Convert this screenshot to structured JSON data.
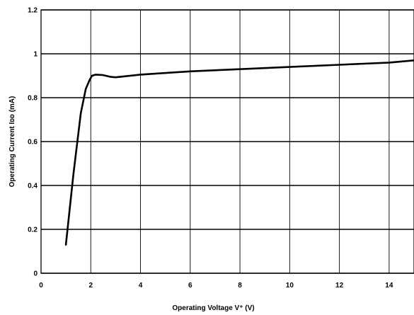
{
  "chart_data": {
    "type": "line",
    "title": "",
    "xlabel": "Operating Voltage  V⁺  (V)",
    "ylabel": "Operating Current  Iᴅᴅ  (mA)",
    "xlim": [
      0,
      15
    ],
    "ylim": [
      0,
      1.2
    ],
    "xticks": [
      0,
      2,
      4,
      6,
      8,
      10,
      12,
      14
    ],
    "xtick_labels": [
      "0",
      "2",
      "4",
      "6",
      "8",
      "10",
      "12",
      "14"
    ],
    "yticks": [
      0,
      0.2,
      0.4,
      0.6,
      0.8,
      1,
      1.2
    ],
    "ytick_labels": [
      "0",
      "0.2",
      "0.4",
      "0.6",
      "0.8",
      "1",
      "1.2"
    ],
    "grid": true,
    "series": [
      {
        "x": [
          1.0,
          1.3,
          1.6,
          1.8,
          1.95,
          2.05,
          2.2,
          2.5,
          2.8,
          3.0,
          4.0,
          6.0,
          8.0,
          10.0,
          12.0,
          14.0,
          15.0
        ],
        "y": [
          0.13,
          0.45,
          0.73,
          0.84,
          0.88,
          0.9,
          0.905,
          0.903,
          0.895,
          0.893,
          0.905,
          0.92,
          0.93,
          0.94,
          0.95,
          0.96,
          0.97
        ]
      }
    ]
  }
}
